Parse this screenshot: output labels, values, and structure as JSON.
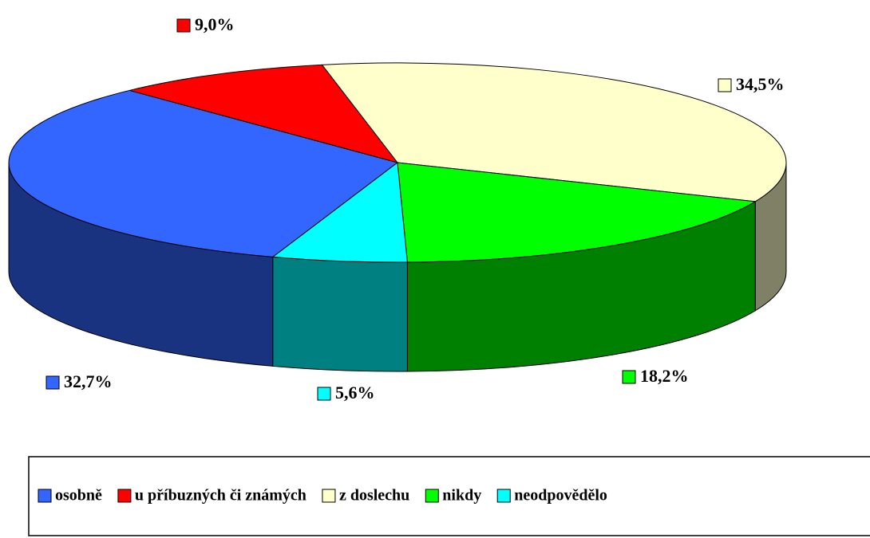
{
  "chart_data": {
    "type": "pie3d",
    "categories": [
      "osobně",
      "u příbuzných či známých",
      "z doslechu",
      "nikdy",
      "neodpovědělo"
    ],
    "values": [
      32.7,
      9.0,
      34.5,
      18.2,
      5.6
    ],
    "value_labels": [
      "32,7%",
      "9,0%",
      "34,5%",
      "18,2%",
      "5,6%"
    ],
    "colors": [
      "#3366ff",
      "#ff0000",
      "#ffffcc",
      "#00ff00",
      "#00ffff"
    ],
    "legend": "bottom"
  }
}
